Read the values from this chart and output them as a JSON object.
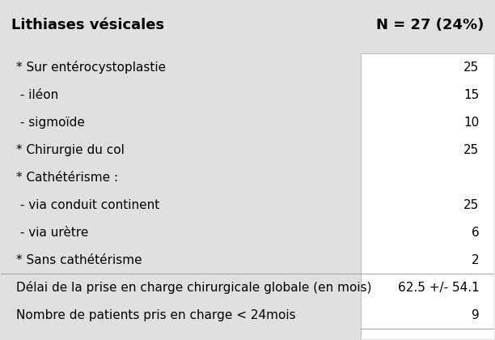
{
  "title_left": "Lithiases vésicales",
  "title_right": "N = 27 (24%)",
  "bg_color": "#e0e0e0",
  "white_panel_color": "#ffffff",
  "rows": [
    {
      "label": "* Sur entérocystoplastie",
      "value": "25"
    },
    {
      "label": " - iléon",
      "value": "15"
    },
    {
      "label": " - sigmoïde",
      "value": "10"
    },
    {
      "label": "* Chirurgie du col",
      "value": "25"
    },
    {
      "label": "* Cathétérisme :",
      "value": ""
    },
    {
      "label": " - via conduit continent",
      "value": "25"
    },
    {
      "label": " - via urètre",
      "value": "6"
    },
    {
      "label": "* Sans cathétérisme",
      "value": "2"
    },
    {
      "label": "Délai de la prise en charge chirurgicale globale (en mois)",
      "value": "62.5 +/- 54.1"
    },
    {
      "label": "Nombre de patients pris en charge < 24mois",
      "value": "9"
    }
  ],
  "title_fontsize": 13,
  "row_fontsize": 11,
  "fig_width": 6.12,
  "fig_height": 4.2,
  "dpi": 100
}
